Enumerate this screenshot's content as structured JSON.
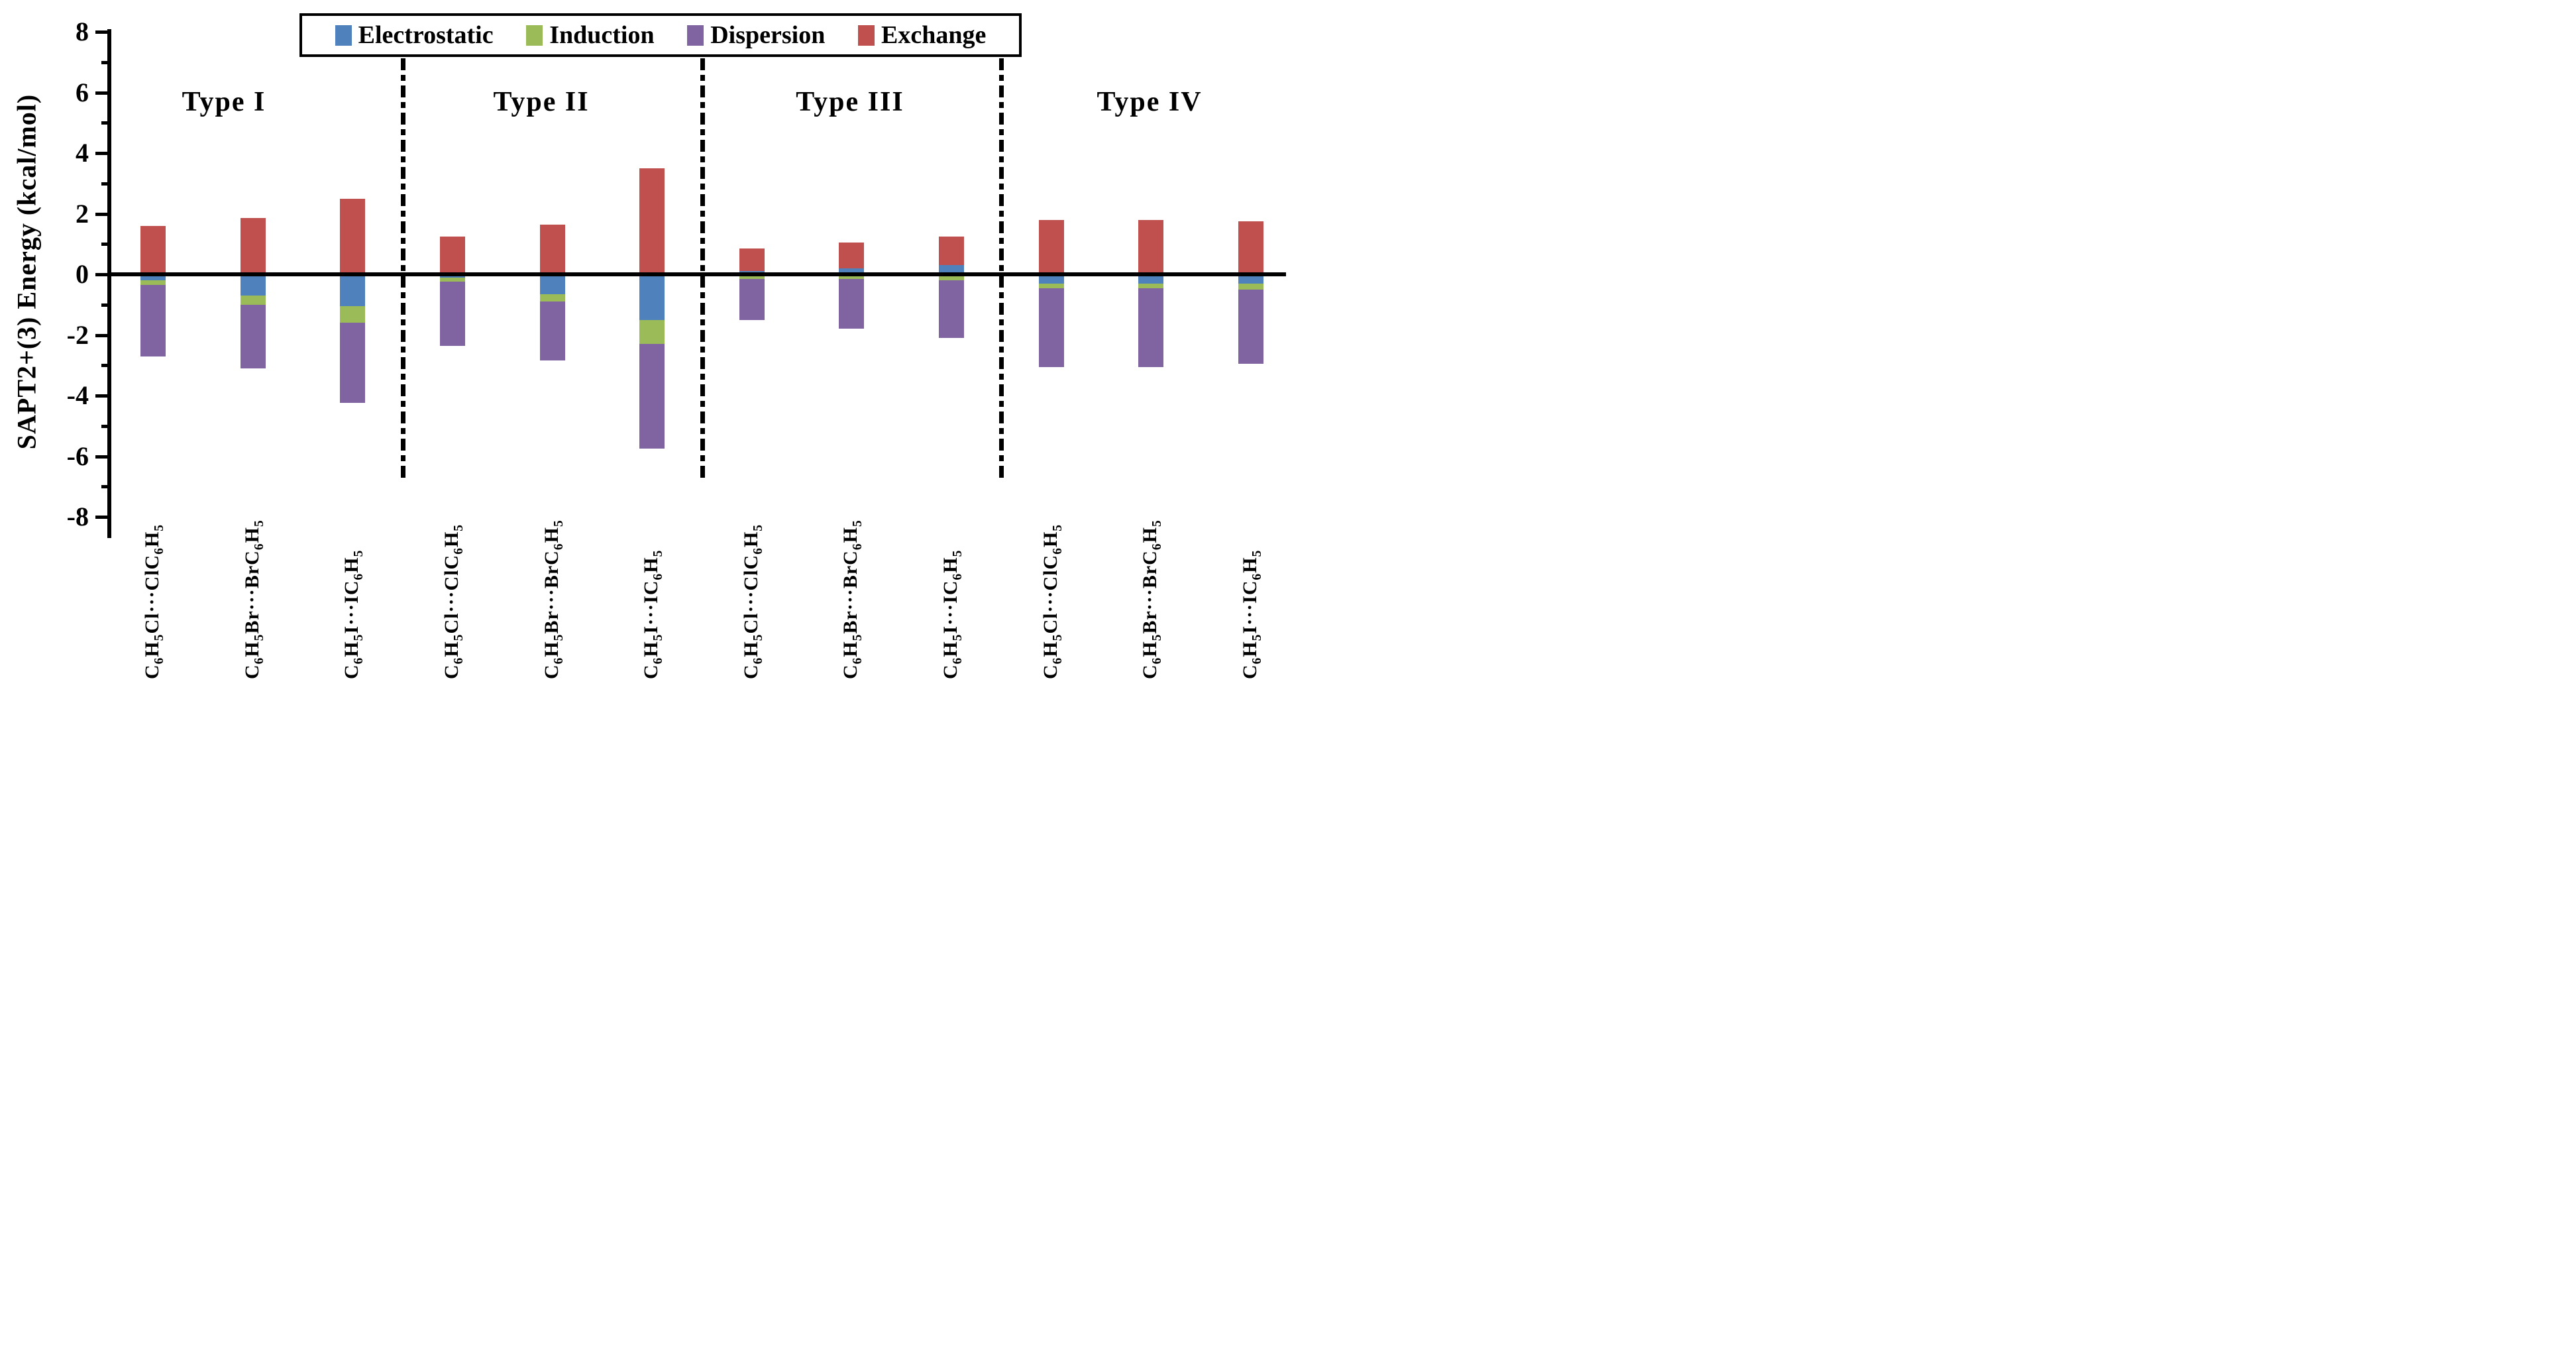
{
  "figure": {
    "y_axis_title": "SAPT2+(3) Energy (kcal/mol)",
    "group_headers": [
      "Type I",
      "Type II",
      "Type III",
      "Type IV"
    ],
    "y_tick_labels": [
      8,
      6,
      4,
      2,
      0,
      -2,
      -4,
      -6,
      -8
    ]
  },
  "chart_data": {
    "type": "bar",
    "stacked": true,
    "title": "",
    "xlabel": "",
    "ylabel": "SAPT2+(3) Energy (kcal/mol)",
    "ylim": [
      -8,
      8
    ],
    "ytick_major_step": 2,
    "ytick_minor_step": 1,
    "grid": false,
    "legend_position": "top",
    "groups": [
      "Type I",
      "Type II",
      "Type III",
      "Type IV"
    ],
    "group_of_bar": [
      "Type I",
      "Type I",
      "Type I",
      "Type II",
      "Type II",
      "Type II",
      "Type III",
      "Type III",
      "Type III",
      "Type IV",
      "Type IV",
      "Type IV"
    ],
    "categories": [
      "C6H5Cl···ClC6H5",
      "C6H5Br···BrC6H5",
      "C6H5I···IC6H5",
      "C6H5Cl···ClC6H5",
      "C6H5Br···BrC6H5",
      "C6H5I···IC6H5",
      "C6H5Cl···ClC6H5",
      "C6H5Br···BrC6H5",
      "C6H5I···IC6H5",
      "C6H5Cl···ClC6H5",
      "C6H5Br···BrC6H5",
      "C6H5I···IC6H5"
    ],
    "series": [
      {
        "name": "Electrostatic",
        "color": "#4F81BD",
        "values": [
          -0.2,
          -0.7,
          -1.05,
          -0.1,
          -0.65,
          -1.5,
          0.1,
          0.2,
          0.3,
          -0.3,
          -0.3,
          -0.3
        ]
      },
      {
        "name": "Induction",
        "color": "#9BBB59",
        "values": [
          -0.15,
          -0.3,
          -0.55,
          -0.15,
          -0.25,
          -0.8,
          -0.15,
          -0.15,
          -0.2,
          -0.15,
          -0.15,
          -0.2
        ]
      },
      {
        "name": "Dispersion",
        "color": "#8064A2",
        "values": [
          -2.35,
          -2.1,
          -2.65,
          -2.1,
          -1.95,
          -3.45,
          -1.35,
          -1.65,
          -1.9,
          -2.6,
          -2.6,
          -2.45
        ]
      },
      {
        "name": "Exchange",
        "color": "#C0504D",
        "values": [
          1.6,
          1.85,
          2.5,
          1.25,
          1.65,
          3.5,
          0.75,
          0.85,
          0.95,
          1.8,
          1.8,
          1.75
        ]
      }
    ],
    "stack_totals_positive": [
      1.6,
      1.85,
      2.5,
      1.25,
      1.65,
      3.5,
      0.85,
      1.05,
      1.25,
      1.8,
      1.8,
      1.75
    ],
    "stack_totals_negative": [
      -2.7,
      -3.1,
      -4.25,
      -2.35,
      -2.85,
      -5.75,
      -1.5,
      -1.8,
      -2.1,
      -3.05,
      -3.05,
      -2.95
    ]
  }
}
